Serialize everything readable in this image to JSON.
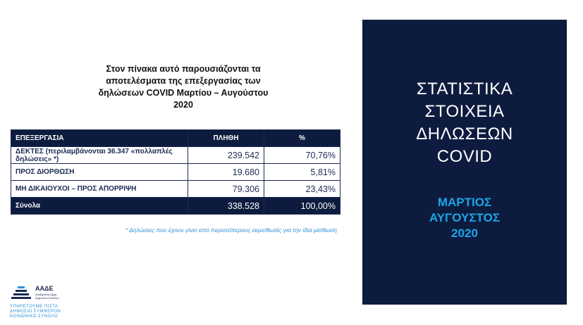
{
  "intro": {
    "line1": "Στον πίνακα αυτό παρουσιάζονται τα",
    "line2": "αποτελέσματα της επεξεργασίας των",
    "line3": "δηλώσεων COVID Μαρτίου – Αυγούστου",
    "line4": "2020"
  },
  "table": {
    "headers": [
      "ΕΠΕΞΕΡΓΑΣΙΑ",
      "ΠΛΗΘΗ",
      "%"
    ],
    "rows": [
      {
        "label": "ΔΕΚΤΕΣ (περιλαμβάνονται 36.347 «πολλαπλές δηλώσεις» *)",
        "count": "239.542",
        "pct": "70,76%"
      },
      {
        "label": "ΠΡΟΣ ΔΙΟΡΘΩΣΗ",
        "count": "19.680",
        "pct": "5,81%"
      },
      {
        "label": "ΜΗ ΔΙΚΑΙΟΥΧΟΙ – ΠΡΟΣ ΑΠΟΡΡΙΨΗ",
        "count": "79.306",
        "pct": "23,43%"
      }
    ],
    "total": {
      "label": "Σύνολα",
      "count": "338.528",
      "pct": "100,00%"
    }
  },
  "footnote": "* Δηλώσεις που έχουν γίνει από περισσότερους εκμισθωτές για την ίδια μίσθωση",
  "logo": {
    "name": "ΑΑΔΕ",
    "sub1": "Ανεξάρτητη Αρχή",
    "sub2": "Δημοσίων Εσόδων",
    "motto1": "ΥΠΗΡΕΤΟΥΜΕ ΠΙΣΤΑ",
    "motto2": "ΔΗΜΟΣΙΟ ΣΥΜΦΕΡΟΝ",
    "motto3": "ΚΟΙΝΩΝΙΚΟ ΣΥΝΟΛΟ"
  },
  "panel": {
    "title_lines": [
      "ΣΤΑΤΙΣΤΙΚΑ",
      "ΣΤΟΙΧΕΙΑ",
      "ΔΗΛΩΣΕΩΝ",
      "COVID"
    ],
    "period_lines": [
      "ΜΑΡΤΙΟΣ",
      "ΑΥΓΟΥΣΤΟΣ",
      "2020"
    ]
  },
  "colors": {
    "navy": "#0d1b3e",
    "accent_blue": "#1aa7e6",
    "footnote_blue": "#2f8fd6"
  }
}
